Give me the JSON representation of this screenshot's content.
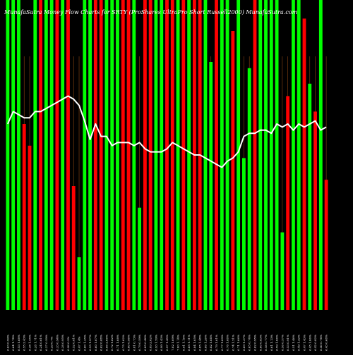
{
  "chart_data": {
    "type": "bar",
    "title": "MunafaSutra Money Flow Charts for SRTY (ProShares UltraPro Short Russell2000) MunafaSutra.com",
    "title_visible": "MunafaSutra  Money Flow  Charts for SRTY                    (ProShares UltraPro Short Russell2000) MunafaSutra.com",
    "ylim": [
      0,
      100
    ],
    "grid": false,
    "legend": "none",
    "colors": {
      "up": "#00ff00",
      "down": "#ff0000",
      "line": "#ffffff",
      "grid": "#8b4513",
      "background": "#000000"
    },
    "categories": [
      "6.63 0.99%",
      "6.64 1.74%",
      "6.53 1.68%",
      "6.55 2.43%",
      "6.38 1.55%",
      "6.28 1.71%",
      "6.24 0.61%",
      "6.27 0.59%",
      "6.29 0.7%",
      "6.33 0.94%",
      "6.38 0.95%",
      "6.46 0.5%",
      "6.52 0.81%",
      "6.47 1.4%",
      "6.60 1.25%",
      "6.55 1.97%",
      "6.60 1.07%",
      "6.62 0.88%",
      "6.66 2.06%",
      "6.72 1.62%",
      "6.71 1.08%",
      "6.75 1.02%",
      "6.80 0.98%",
      "6.81 0.73%",
      "6.79 0.59%",
      "6.85 0.46%",
      "6.89 2.02%",
      "6.93 1.59%",
      "6.99 1.43%",
      "6.97 1.45%",
      "7.02 1.09%",
      "7.00 1.14%",
      "6.91 1.16%",
      "6.85 1.11%",
      "6.84 1.05%",
      "6.85 1.48%",
      "6.86 1.26%",
      "6.82 1.04%",
      "6.79 1.01%",
      "6.77 1.09%",
      "6.76 1.88%",
      "6.74 1.51%",
      "6.71 1.06%",
      "6.69 1.37%",
      "6.65 0.74%",
      "6.62 0.95%",
      "6.60 0.83%",
      "6.58 0.77%",
      "6.61 1.13%",
      "6.59 1.06%",
      "6.56 0.57%",
      "6.53 0.91%",
      "6.51 1.46%",
      "6.49 1.22%",
      "6.47 1.43%",
      "6.45 1.06%",
      "6.42 0.82%",
      "6.40 0.74%",
      "6.43 0.68%"
    ],
    "directions": [
      "up",
      "up",
      "up",
      "down",
      "down",
      "up",
      "down",
      "up",
      "up",
      "down",
      "up",
      "down",
      "down",
      "up",
      "up",
      "up",
      "down",
      "down",
      "up",
      "up",
      "up",
      "down",
      "down",
      "up",
      "up",
      "down",
      "down",
      "up",
      "up",
      "down",
      "down",
      "up",
      "down",
      "up",
      "down",
      "down",
      "up",
      "up",
      "down",
      "up",
      "up",
      "down",
      "up",
      "up",
      "up",
      "down",
      "up",
      "up",
      "up",
      "up",
      "up",
      "down",
      "up",
      "up",
      "down",
      "up",
      "down",
      "up",
      "down"
    ],
    "values": [
      100,
      100,
      100,
      60,
      53,
      100,
      100,
      100,
      100,
      100,
      100,
      100,
      40,
      17,
      100,
      100,
      100,
      100,
      100,
      100,
      100,
      100,
      100,
      100,
      33,
      100,
      100,
      100,
      100,
      100,
      100,
      100,
      100,
      100,
      100,
      100,
      100,
      80,
      100,
      100,
      100,
      90,
      100,
      49,
      78,
      100,
      100,
      100,
      100,
      100,
      25,
      69,
      100,
      100,
      94,
      73,
      64,
      100,
      42
    ],
    "line": [
      60,
      64,
      63,
      62,
      62,
      64,
      64,
      65,
      66,
      67,
      68,
      69,
      68,
      66,
      61,
      55,
      60,
      56,
      56,
      53,
      54,
      54,
      54,
      53,
      54,
      52,
      51,
      51,
      51,
      52,
      54,
      53,
      52,
      51,
      50,
      50,
      49,
      48,
      47,
      46,
      48,
      49,
      51,
      56,
      57,
      57,
      58,
      58,
      57,
      60,
      59,
      60,
      58,
      60,
      59,
      60,
      61,
      58,
      59
    ]
  }
}
